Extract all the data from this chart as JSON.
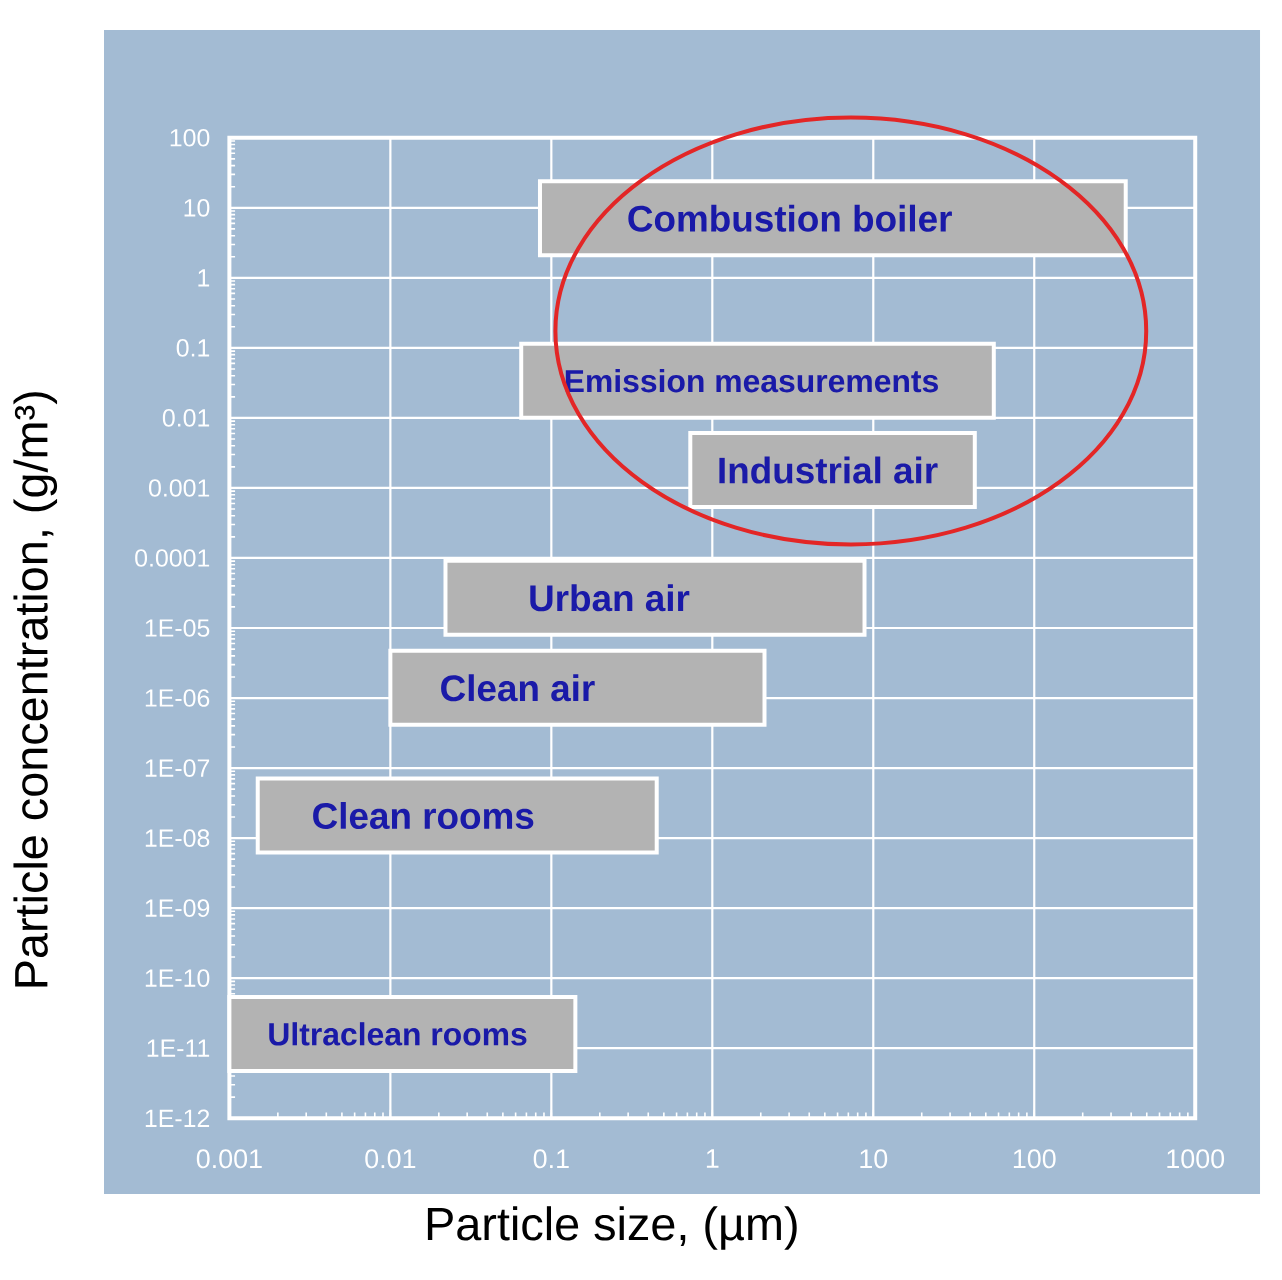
{
  "chart_data": {
    "type": "bar",
    "orientation": "horizontal",
    "xlabel": "Particle size, (µm)",
    "ylabel": "Particle concentration, (g/m³)",
    "x": [
      7.1,
      0.034,
      0.0018,
      2.7e-05,
      1.4e-06,
      2.1e-08,
      1.6e-11
    ],
    "base": [
      0.085,
      0.065,
      0.73,
      0.022,
      0.01,
      0.0015,
      0.001
    ],
    "values": [
      370,
      56,
      42,
      8.8,
      2.1,
      0.45,
      0.14
    ],
    "color": "#b3b3b3",
    "annotations": [
      "Combustion boiler",
      "Emission measurements",
      "Industrial air",
      "Urban air",
      "Clean air",
      "Clean rooms",
      "Ultraclean rooms"
    ],
    "log": "xy",
    "xlim": [
      0.001,
      1000
    ],
    "xticks": [
      0.001,
      0.01,
      0.1,
      1,
      10,
      100,
      1000
    ],
    "ylim": [
      1e-12,
      100
    ],
    "yticks": [
      {
        "value": 1e-12,
        "label": "1E-12"
      },
      {
        "value": 1e-11,
        "label": "1E-11"
      },
      {
        "value": 1e-10,
        "label": "1E-10"
      },
      {
        "value": 1e-09,
        "label": "1E-09"
      },
      {
        "value": 1e-08,
        "label": "1E-08"
      },
      {
        "value": 1e-07,
        "label": "1E-07"
      },
      {
        "value": 1e-06,
        "label": "1E-06"
      },
      {
        "value": 1e-05,
        "label": "1E-05"
      },
      0.0001,
      0.001,
      0.01,
      0.1,
      1,
      10,
      100
    ],
    "grid": true
  }
}
